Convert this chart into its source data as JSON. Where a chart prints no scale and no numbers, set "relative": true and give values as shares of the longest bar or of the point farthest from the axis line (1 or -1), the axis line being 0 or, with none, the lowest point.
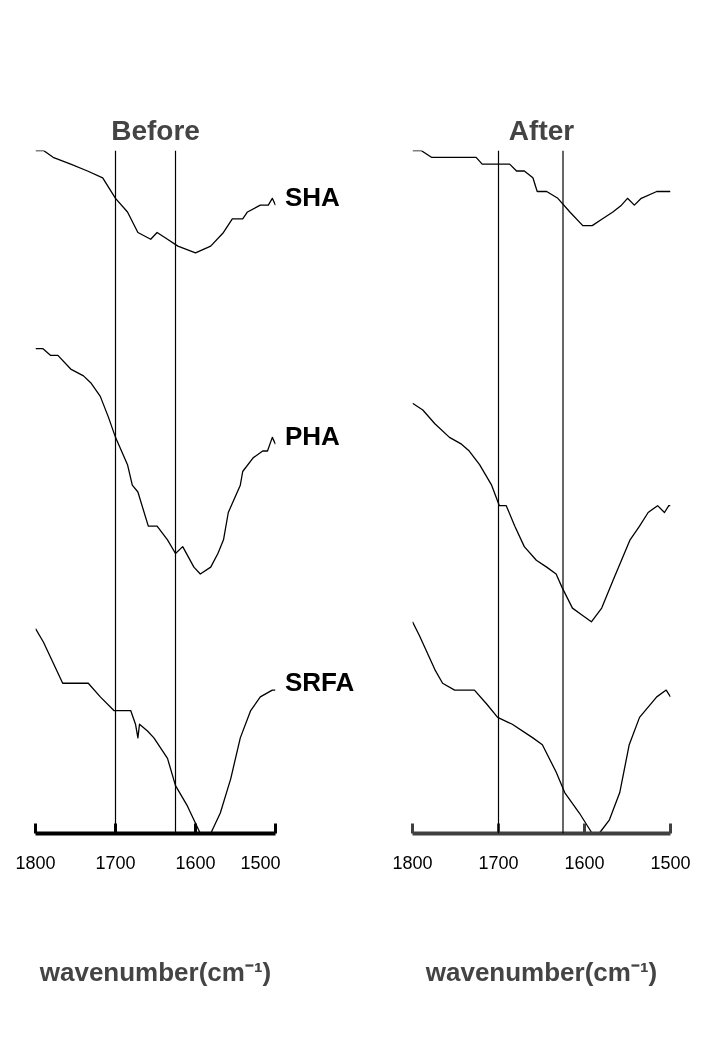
{
  "chart_data": [
    {
      "type": "line",
      "title": "Before",
      "xlabel": "wavenumber(cm⁻¹)",
      "xlim": [
        1800,
        1500
      ],
      "xticks": [
        1800,
        1700,
        1600,
        1500
      ],
      "relative": true,
      "ref_lines": [
        {
          "axis": "x",
          "value": 1700,
          "color": "#000000"
        },
        {
          "axis": "x",
          "value": 1625,
          "color": "#000000"
        }
      ],
      "series": [
        {
          "name": "SHA",
          "color": "#000000",
          "x": [
            1800,
            1790,
            1778,
            1756,
            1735,
            1716,
            1700,
            1685,
            1672,
            1656,
            1648,
            1635,
            1622,
            1600,
            1581,
            1565,
            1554,
            1541,
            1535,
            1519,
            1509,
            1504,
            1500
          ],
          "values": [
            1.0,
            1.0,
            0.99,
            0.98,
            0.97,
            0.96,
            0.93,
            0.91,
            0.88,
            0.87,
            0.88,
            0.87,
            0.86,
            0.85,
            0.86,
            0.88,
            0.9,
            0.9,
            0.91,
            0.92,
            0.92,
            0.93,
            0.92
          ]
        },
        {
          "name": "PHA",
          "color": "#000000",
          "x": [
            1800,
            1791,
            1781,
            1772,
            1756,
            1740,
            1731,
            1719,
            1709,
            1700,
            1685,
            1679,
            1672,
            1659,
            1648,
            1635,
            1625,
            1616,
            1602,
            1594,
            1581,
            1572,
            1565,
            1559,
            1544,
            1541,
            1528,
            1516,
            1510,
            1504,
            1500
          ],
          "values": [
            0.71,
            0.71,
            0.7,
            0.7,
            0.68,
            0.67,
            0.66,
            0.64,
            0.61,
            0.58,
            0.54,
            0.51,
            0.5,
            0.45,
            0.45,
            0.43,
            0.41,
            0.42,
            0.39,
            0.38,
            0.39,
            0.41,
            0.43,
            0.47,
            0.51,
            0.53,
            0.55,
            0.56,
            0.56,
            0.58,
            0.57
          ]
        },
        {
          "name": "SRFA",
          "color": "#000000",
          "x": [
            1800,
            1790,
            1778,
            1766,
            1754,
            1734,
            1719,
            1702,
            1694,
            1681,
            1675,
            1672,
            1670,
            1660,
            1652,
            1635,
            1625,
            1610,
            1594,
            1581,
            1569,
            1556,
            1544,
            1531,
            1519,
            1504,
            1500
          ],
          "values": [
            0.3,
            0.28,
            0.25,
            0.22,
            0.22,
            0.22,
            0.2,
            0.18,
            0.18,
            0.18,
            0.16,
            0.14,
            0.16,
            0.15,
            0.14,
            0.11,
            0.07,
            0.04,
            0.0,
            0.0,
            0.03,
            0.08,
            0.14,
            0.18,
            0.2,
            0.21,
            0.21
          ]
        }
      ]
    },
    {
      "type": "line",
      "title": "After",
      "xlabel": "wavenumber(cm⁻¹)",
      "xlim": [
        1800,
        1500
      ],
      "xticks": [
        1800,
        1700,
        1600,
        1500
      ],
      "relative": true,
      "ref_lines": [
        {
          "axis": "x",
          "value": 1700,
          "color": "#000000"
        },
        {
          "axis": "x",
          "value": 1625,
          "color": "#000000"
        }
      ],
      "series": [
        {
          "color": "#000000",
          "x": [
            1800,
            1790,
            1778,
            1726,
            1719,
            1687,
            1679,
            1670,
            1660,
            1655,
            1644,
            1631,
            1617,
            1602,
            1591,
            1579,
            1567,
            1557,
            1550,
            1542,
            1534,
            1516,
            1505,
            1500
          ],
          "values": [
            1.0,
            1.0,
            0.99,
            0.99,
            0.98,
            0.98,
            0.97,
            0.97,
            0.96,
            0.94,
            0.94,
            0.93,
            0.91,
            0.89,
            0.89,
            0.9,
            0.91,
            0.92,
            0.93,
            0.92,
            0.93,
            0.94,
            0.94,
            0.94
          ]
        },
        {
          "color": "#000000",
          "x": [
            1800,
            1788,
            1774,
            1757,
            1743,
            1734,
            1722,
            1708,
            1699,
            1691,
            1681,
            1670,
            1656,
            1644,
            1633,
            1626,
            1614,
            1603,
            1592,
            1580,
            1567,
            1557,
            1547,
            1536,
            1526,
            1515,
            1507,
            1502,
            1500
          ],
          "values": [
            0.63,
            0.62,
            0.6,
            0.58,
            0.57,
            0.56,
            0.54,
            0.51,
            0.48,
            0.48,
            0.45,
            0.42,
            0.4,
            0.39,
            0.38,
            0.36,
            0.33,
            0.32,
            0.31,
            0.33,
            0.37,
            0.4,
            0.43,
            0.45,
            0.47,
            0.48,
            0.47,
            0.48,
            0.48
          ]
        },
        {
          "color": "#000000",
          "x": [
            1800,
            1792,
            1774,
            1765,
            1751,
            1728,
            1714,
            1701,
            1684,
            1660,
            1649,
            1633,
            1623,
            1606,
            1591,
            1583,
            1571,
            1559,
            1548,
            1536,
            1516,
            1505,
            1500
          ],
          "values": [
            0.31,
            0.29,
            0.24,
            0.22,
            0.21,
            0.21,
            0.19,
            0.17,
            0.16,
            0.14,
            0.13,
            0.09,
            0.06,
            0.03,
            0.0,
            0.0,
            0.02,
            0.06,
            0.13,
            0.17,
            0.2,
            0.21,
            0.2
          ]
        }
      ]
    }
  ]
}
